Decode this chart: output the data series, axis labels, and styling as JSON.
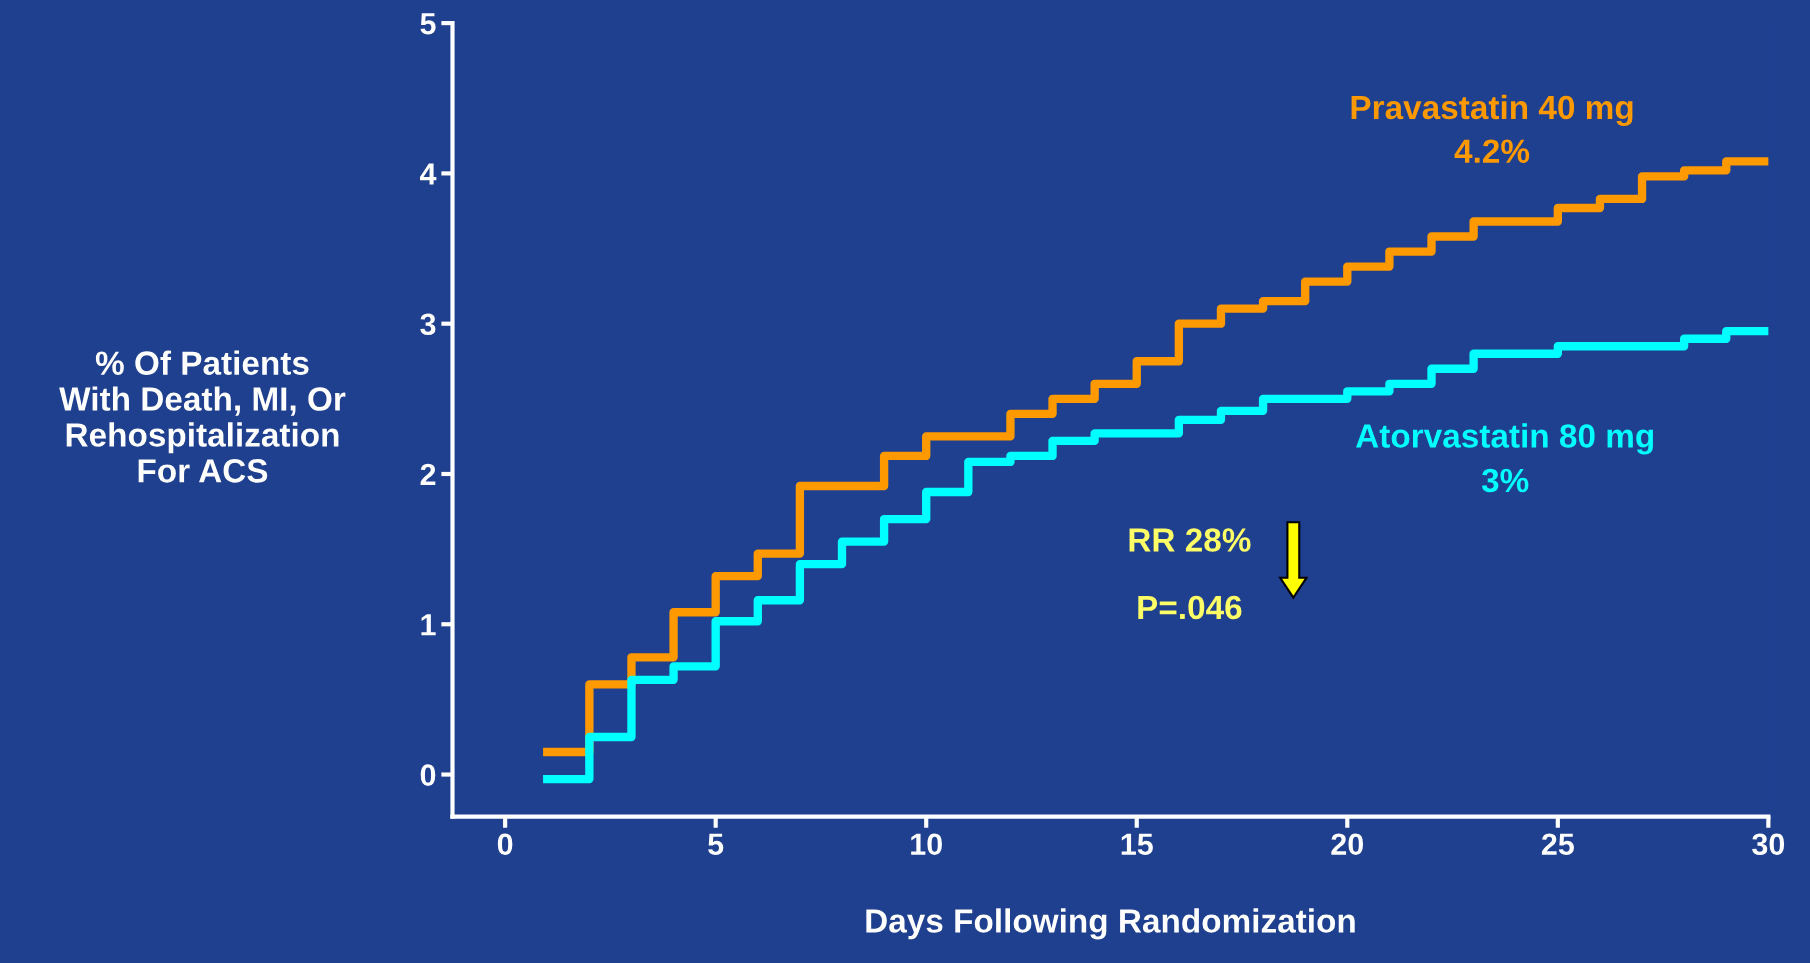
{
  "chart_data": {
    "type": "step",
    "xlabel": "Days Following Randomization",
    "ylabel": "% Of Patients\nWith Death, MI, Or\nRehospitalization\nFor ACS",
    "xlim": [
      -1.25,
      30
    ],
    "ylim": [
      -0.28,
      5
    ],
    "xticks": [
      0,
      5,
      10,
      15,
      20,
      25,
      30
    ],
    "yticks": [
      0,
      1,
      2,
      3,
      4,
      5
    ],
    "grid": false,
    "legend": false,
    "series": [
      {
        "name": "Pravastatin 40 mg",
        "color": "#ff9900",
        "x": [
          1,
          2,
          3,
          4,
          5,
          6,
          7,
          9,
          10,
          12,
          13,
          14,
          15,
          16,
          17,
          18,
          19,
          20,
          21,
          22,
          23,
          25,
          26,
          27,
          28,
          29,
          30
        ],
        "values": [
          0.15,
          0.6,
          0.78,
          1.08,
          1.32,
          1.47,
          1.92,
          2.12,
          2.25,
          2.4,
          2.5,
          2.6,
          2.75,
          3.0,
          3.1,
          3.15,
          3.28,
          3.38,
          3.48,
          3.58,
          3.68,
          3.77,
          3.83,
          3.98,
          4.02,
          4.08,
          4.08
        ]
      },
      {
        "name": "Atorvastatin 80 mg",
        "color": "#00ffff",
        "x": [
          1,
          2,
          3,
          4,
          5,
          6,
          7,
          8,
          9,
          10,
          11,
          12,
          13,
          14,
          16,
          17,
          18,
          20,
          21,
          22,
          23,
          25,
          28,
          29,
          30
        ],
        "values": [
          -0.03,
          0.25,
          0.63,
          0.72,
          1.02,
          1.16,
          1.4,
          1.55,
          1.7,
          1.88,
          2.08,
          2.12,
          2.22,
          2.27,
          2.36,
          2.42,
          2.5,
          2.55,
          2.6,
          2.7,
          2.8,
          2.85,
          2.9,
          2.95,
          2.95
        ]
      }
    ],
    "annotations": [
      "4.2%",
      "3%",
      "RR 28%",
      "P=.046"
    ]
  }
}
